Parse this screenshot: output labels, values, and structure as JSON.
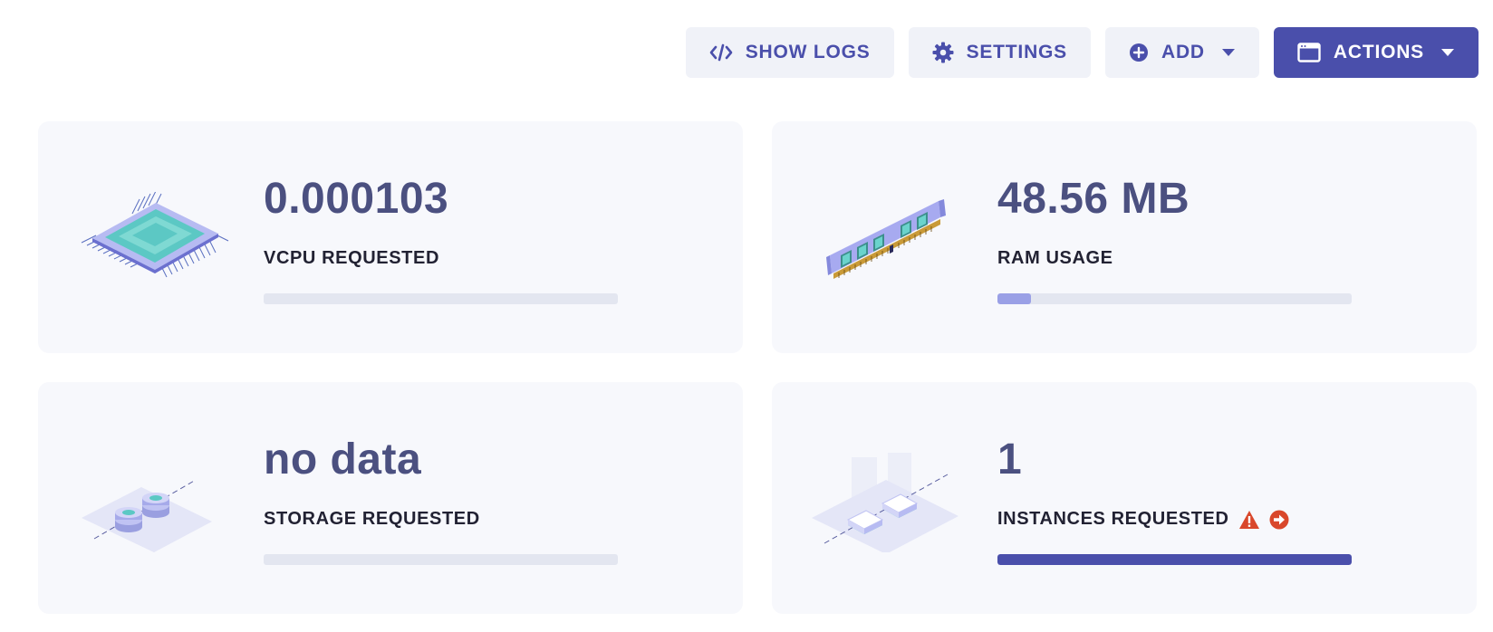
{
  "toolbar": {
    "show_logs": {
      "label": "SHOW LOGS",
      "icon": "code-icon"
    },
    "settings": {
      "label": "SETTINGS",
      "icon": "gear-icon"
    },
    "add": {
      "label": "ADD",
      "icon": "plus-circle-icon"
    },
    "actions": {
      "label": "ACTIONS",
      "icon": "window-icon"
    }
  },
  "colors": {
    "accent": "#4a4fab",
    "ram_fill": "#9aa0e6",
    "instances_fill": "#4a4fab",
    "warning": "#d9472b"
  },
  "cards": [
    {
      "value": "0.000103",
      "label": "VCPU REQUESTED",
      "progress": 0,
      "icon": "cpu-chip-illustration"
    },
    {
      "value": "48.56 MB",
      "label": "RAM USAGE",
      "progress": 0.095,
      "icon": "ram-module-illustration"
    },
    {
      "value": "no data",
      "label": "STORAGE REQUESTED",
      "progress": 0,
      "icon": "storage-disks-illustration"
    },
    {
      "value": "1",
      "label": "INSTANCES REQUESTED",
      "progress": 1.0,
      "icon": "instances-illustration",
      "warning": true
    }
  ]
}
